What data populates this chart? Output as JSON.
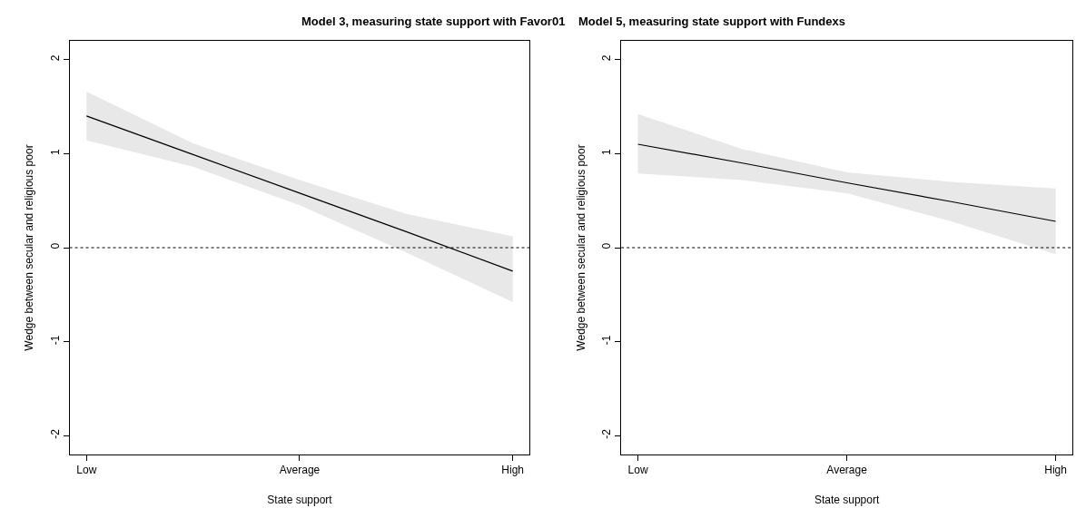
{
  "chart_data": [
    {
      "type": "line",
      "title": "Model 3, measuring state support with Favor01",
      "xlabel": "State support",
      "ylabel": "Wedge between secular and religious poor",
      "categories": [
        "Low",
        null,
        "Average",
        null,
        "High"
      ],
      "series": [
        {
          "color": "#000000",
          "values": [
            1.4,
            0.99,
            0.58,
            0.17,
            -0.25
          ],
          "lower": [
            1.14,
            0.86,
            0.45,
            -0.05,
            -0.58
          ],
          "upper": [
            1.66,
            1.11,
            0.72,
            0.36,
            0.12
          ]
        }
      ],
      "ylim": [
        -2.2,
        2.2
      ],
      "yticks": [
        -2,
        -1,
        0,
        1,
        2
      ],
      "line_style": "solid",
      "marker": "none",
      "ref_lines": [
        {
          "axis": "y",
          "value": 0,
          "color": "#000000",
          "line_style": "dotted"
        }
      ]
    },
    {
      "type": "line",
      "title": "Model 5, measuring state support with Fundexs",
      "xlabel": "State support",
      "ylabel": "Wedge between secular and religious poor",
      "categories": [
        "Low",
        null,
        "Average",
        null,
        "High"
      ],
      "series": [
        {
          "color": "#000000",
          "values": [
            1.1,
            0.9,
            0.69,
            0.49,
            0.28
          ],
          "lower": [
            0.79,
            0.72,
            0.58,
            0.28,
            -0.07
          ],
          "upper": [
            1.42,
            1.05,
            0.8,
            0.7,
            0.63
          ]
        }
      ],
      "ylim": [
        -2.2,
        2.2
      ],
      "yticks": [
        -2,
        -1,
        0,
        1,
        2
      ],
      "line_style": "solid",
      "marker": "none",
      "ref_lines": [
        {
          "axis": "y",
          "value": 0,
          "color": "#000000",
          "line_style": "dotted"
        }
      ]
    }
  ]
}
